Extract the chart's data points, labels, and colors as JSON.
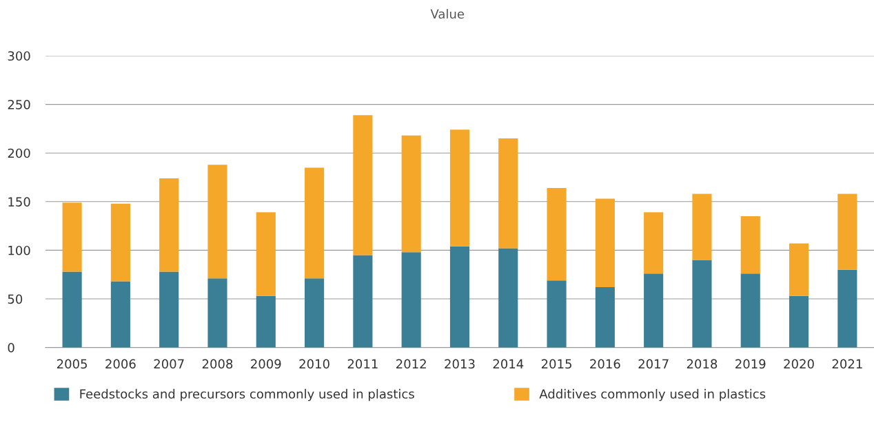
{
  "chart_data": {
    "type": "bar",
    "stacked": true,
    "ylabel": "Value",
    "categories": [
      "2005",
      "2006",
      "2007",
      "2008",
      "2009",
      "2010",
      "2011",
      "2012",
      "2013",
      "2014",
      "2015",
      "2016",
      "2017",
      "2018",
      "2019",
      "2020",
      "2021"
    ],
    "series": [
      {
        "name": "Feedstocks and precursors commonly used in plastics",
        "color": "#3a7f96",
        "values": [
          78,
          68,
          78,
          71,
          53,
          71,
          95,
          98,
          104,
          102,
          69,
          62,
          76,
          90,
          76,
          53,
          80
        ]
      },
      {
        "name": "Additives commonly used in plastics",
        "color": "#f5a72a",
        "values": [
          71,
          80,
          96,
          117,
          86,
          114,
          144,
          120,
          120,
          113,
          95,
          91,
          63,
          68,
          59,
          54,
          78
        ]
      }
    ],
    "ylim": [
      0,
      300
    ],
    "yticks": [
      0,
      50,
      100,
      150,
      200,
      250,
      300
    ],
    "grid": "y",
    "legend": "bottom"
  }
}
